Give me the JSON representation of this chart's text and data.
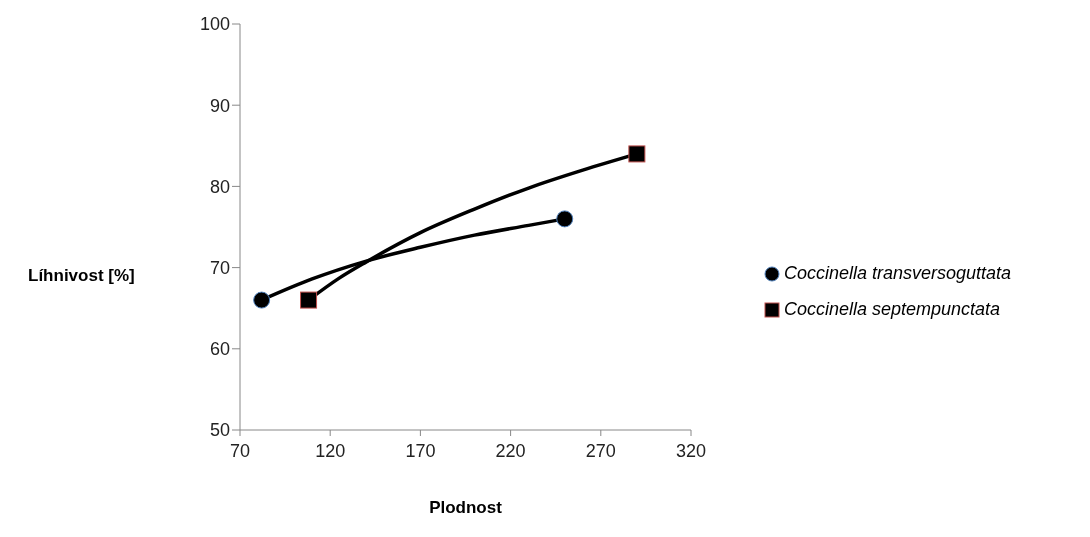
{
  "chart_data": {
    "type": "scatter",
    "xlabel": "Plodnost",
    "ylabel": "Líhnivost [%]",
    "xlim": [
      70,
      320
    ],
    "xticks": [
      70,
      120,
      170,
      220,
      270,
      320
    ],
    "ylim": [
      50,
      100
    ],
    "yticks": [
      50,
      60,
      70,
      80,
      90,
      100
    ],
    "legend": "right",
    "series": [
      {
        "name": "Coccinella transversoguttata",
        "color": "#000000",
        "marker": "circle",
        "x": [
          82,
          250
        ],
        "values": [
          66,
          76
        ]
      },
      {
        "name": "Coccinella septempunctata",
        "color": "#000000",
        "marker": "square",
        "x": [
          108,
          290
        ],
        "values": [
          66,
          84
        ]
      },
      {
        "type": "line",
        "color": "#000000",
        "marker": "none",
        "x": [
          82,
          110,
          140,
          170,
          200,
          230,
          250
        ],
        "values": [
          66,
          68.6,
          70.8,
          72.5,
          74.0,
          75.2,
          76
        ]
      },
      {
        "type": "line",
        "color": "#000000",
        "marker": "none",
        "x": [
          108,
          125,
          140,
          170,
          200,
          230,
          260,
          290
        ],
        "values": [
          66,
          68.7,
          70.7,
          74.3,
          77.2,
          79.8,
          82.0,
          84
        ]
      }
    ]
  }
}
